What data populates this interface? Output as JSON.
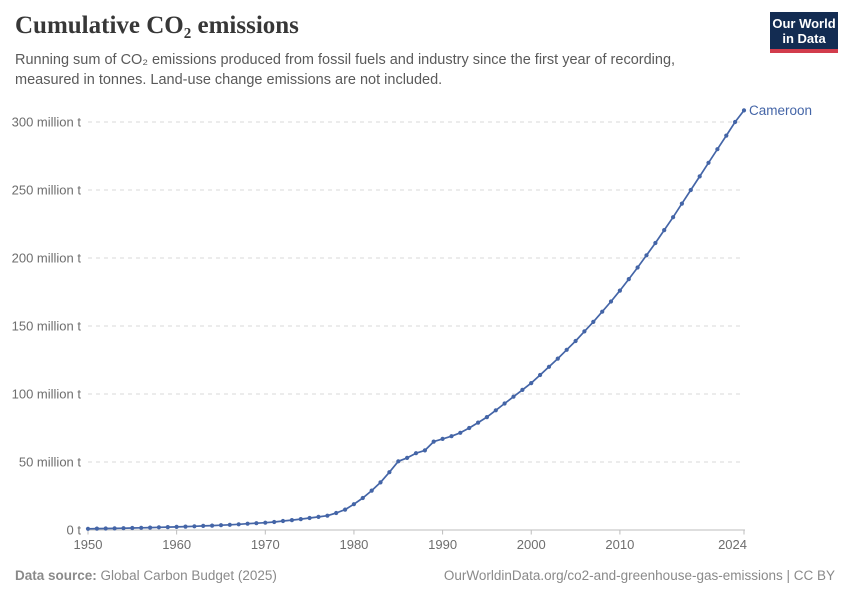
{
  "header": {
    "title": "Cumulative CO₂ emissions",
    "subtitle_lines": [
      "Running sum of CO₂ emissions produced from fossil fuels and industry since the first year of recording,",
      "measured in tonnes. Land-use change emissions are not included."
    ],
    "logo": {
      "line1": "Our World",
      "line2": "in Data",
      "bg_color": "#132c52",
      "bar_color": "#d23c4c"
    }
  },
  "chart_data": {
    "type": "line",
    "title": "Cumulative CO₂ emissions",
    "entity": "Cameroon",
    "unit": "million t",
    "xlabel": "",
    "ylabel": "",
    "xlim": [
      1950,
      2024
    ],
    "ylim": [
      0,
      310
    ],
    "grid": "horizontal dashed",
    "legend_position": "end-of-line label",
    "line_color": "#4465a7",
    "entity_label_color": "#4465a7",
    "x_ticks": [
      1950,
      1960,
      1970,
      1980,
      1990,
      2000,
      2010,
      2024
    ],
    "y_ticks": [
      {
        "value": 0,
        "label": "0 t"
      },
      {
        "value": 50,
        "label": "50 million t"
      },
      {
        "value": 100,
        "label": "100 million t"
      },
      {
        "value": 150,
        "label": "150 million t"
      },
      {
        "value": 200,
        "label": "200 million t"
      },
      {
        "value": 250,
        "label": "250 million t"
      },
      {
        "value": 300,
        "label": "300 million t"
      }
    ],
    "x": [
      1950,
      1951,
      1952,
      1953,
      1954,
      1955,
      1956,
      1957,
      1958,
      1959,
      1960,
      1961,
      1962,
      1963,
      1964,
      1965,
      1966,
      1967,
      1968,
      1969,
      1970,
      1971,
      1972,
      1973,
      1974,
      1975,
      1976,
      1977,
      1978,
      1979,
      1980,
      1981,
      1982,
      1983,
      1984,
      1985,
      1986,
      1987,
      1988,
      1989,
      1990,
      1991,
      1992,
      1993,
      1994,
      1995,
      1996,
      1997,
      1998,
      1999,
      2000,
      2001,
      2002,
      2003,
      2004,
      2005,
      2006,
      2007,
      2008,
      2009,
      2010,
      2011,
      2012,
      2013,
      2014,
      2015,
      2016,
      2017,
      2018,
      2019,
      2020,
      2021,
      2022,
      2023,
      2024
    ],
    "values": [
      0.9,
      1.0,
      1.1,
      1.2,
      1.35,
      1.5,
      1.65,
      1.8,
      1.95,
      2.1,
      2.3,
      2.5,
      2.75,
      3.0,
      3.25,
      3.5,
      3.8,
      4.2,
      4.6,
      5.0,
      5.4,
      5.9,
      6.6,
      7.3,
      8.0,
      8.8,
      9.6,
      10.5,
      12.5,
      15.0,
      19.0,
      23.5,
      29.0,
      35.0,
      42.5,
      50.5,
      53.0,
      56.5,
      58.5,
      65.0,
      67.0,
      69.0,
      71.5,
      75.0,
      79.0,
      83.0,
      88.0,
      93.0,
      98.0,
      103.0,
      108.0,
      114.0,
      120.0,
      126.0,
      132.5,
      139.0,
      146.0,
      153.0,
      160.5,
      168.0,
      176.0,
      184.5,
      193.0,
      202.0,
      211.0,
      220.5,
      230.0,
      240.0,
      250.0,
      260.0,
      270.0,
      280.0,
      290.0,
      300.0,
      308.5
    ]
  },
  "footer": {
    "source_label": "Data source:",
    "source_value": "Global Carbon Budget (2025)",
    "link": "OurWorldinData.org/co2-and-greenhouse-gas-emissions | CC BY"
  },
  "colors": {
    "title_text": "#373737",
    "subtitle_text": "#5a5a5a",
    "tick_text": "#6e6e6e",
    "gridline": "#dadada",
    "axis_line": "#bdbdbd",
    "footer_text": "#8a8a8a"
  }
}
